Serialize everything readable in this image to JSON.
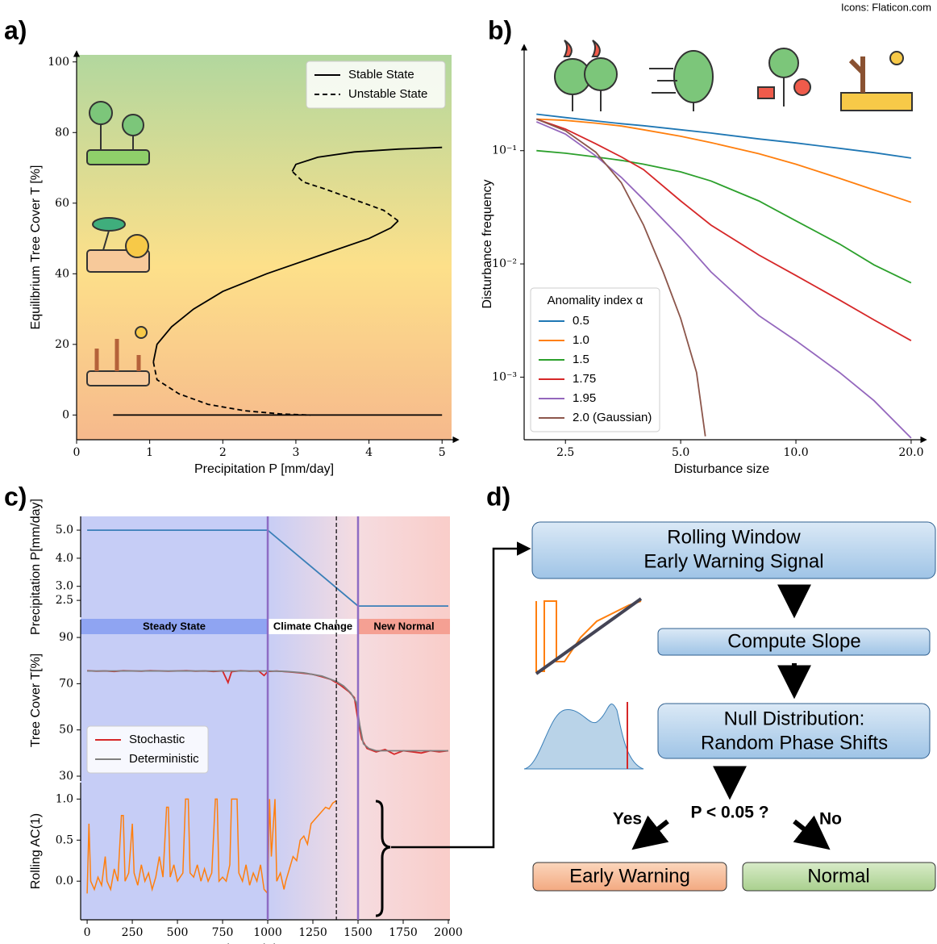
{
  "credit": "Icons: Flaticon.com",
  "chart_data": [
    {
      "type": "line",
      "panel": "a)",
      "xlabel": "Precipitation P [mm/day]",
      "ylabel": "Equilibrium Tree Cover T [%]",
      "xlim": [
        0,
        5.13
      ],
      "ylim": [
        -7,
        102
      ],
      "xticks": [
        0,
        1,
        2,
        3,
        4,
        5
      ],
      "yticks": [
        0,
        20,
        40,
        60,
        80,
        100
      ],
      "legend": "upper right",
      "series": [
        {
          "name": "Stable State",
          "color": "#000000",
          "linestyle": "solid",
          "x": [
            0.5,
            5,
            null,
            1.05,
            1.1,
            1.3,
            1.6,
            2.0,
            2.6,
            3.3,
            4.0,
            4.3,
            4.4,
            null,
            2.95,
            3.0,
            3.3,
            3.8,
            4.4,
            5
          ],
          "values": [
            0,
            0,
            null,
            15,
            20,
            25,
            30,
            35,
            40,
            45,
            50,
            53,
            55,
            null,
            69,
            71,
            73,
            74.5,
            75.3,
            75.8
          ]
        },
        {
          "name": "Unstable State",
          "color": "#000000",
          "linestyle": "dashed",
          "x": [
            4.4,
            4.2,
            3.8,
            3.4,
            3.1,
            2.95,
            null,
            1.05,
            1.1,
            1.4,
            1.8,
            2.3,
            2.8,
            3.2
          ],
          "values": [
            55,
            58,
            61,
            64,
            66,
            69,
            null,
            15,
            10,
            6,
            3,
            1.2,
            0.3,
            0
          ]
        }
      ]
    },
    {
      "type": "line",
      "panel": "b)",
      "xlabel": "Disturbance size",
      "ylabel": "Disturbance frequency",
      "xscale": "log",
      "yscale": "log",
      "xlim": [
        1.95,
        21
      ],
      "ylim": [
        0.00028,
        0.8
      ],
      "xticks": [
        2.5,
        {
          "value": 5,
          "label": "5.0"
        },
        {
          "value": 10,
          "label": "10.0"
        },
        {
          "value": 20,
          "label": "20.0"
        }
      ],
      "yticks": [
        {
          "value": 0.001,
          "label": "10⁻³"
        },
        {
          "value": 0.01,
          "label": "10⁻²"
        },
        {
          "value": 0.1,
          "label": "10⁻¹"
        }
      ],
      "legend": "lower left",
      "legend_title": "Anomality index α",
      "series": [
        {
          "name": "0.5",
          "color": "#1f77b4",
          "x": [
            2.1,
            2.5,
            3,
            3.5,
            4,
            5,
            6,
            8,
            10,
            13,
            16,
            20
          ],
          "values": [
            0.21,
            0.196,
            0.183,
            0.173,
            0.166,
            0.153,
            0.143,
            0.127,
            0.117,
            0.105,
            0.096,
            0.086
          ]
        },
        {
          "name": "1.0",
          "color": "#ff7f0e",
          "x": [
            2.1,
            2.5,
            3,
            3.5,
            4,
            5,
            6,
            8,
            10,
            13,
            16,
            20
          ],
          "values": [
            0.19,
            0.185,
            0.175,
            0.165,
            0.153,
            0.134,
            0.118,
            0.094,
            0.076,
            0.057,
            0.045,
            0.035
          ]
        },
        {
          "name": "1.5",
          "color": "#2ca02c",
          "x": [
            2.1,
            2.5,
            3,
            3.5,
            4,
            5,
            6,
            8,
            10,
            13,
            16,
            20
          ],
          "values": [
            0.1,
            0.095,
            0.088,
            0.082,
            0.076,
            0.065,
            0.054,
            0.036,
            0.024,
            0.015,
            0.0098,
            0.0068
          ]
        },
        {
          "name": "1.75",
          "color": "#d62728",
          "x": [
            2.1,
            2.5,
            3,
            3.5,
            4,
            5,
            6,
            8,
            10,
            13,
            16,
            20
          ],
          "values": [
            0.19,
            0.155,
            0.115,
            0.088,
            0.068,
            0.036,
            0.022,
            0.012,
            0.0079,
            0.0048,
            0.0032,
            0.0021
          ]
        },
        {
          "name": "1.95",
          "color": "#9467bd",
          "x": [
            2.1,
            2.5,
            3,
            3.5,
            4,
            5,
            6,
            8,
            10,
            13,
            16,
            20
          ],
          "values": [
            0.18,
            0.14,
            0.09,
            0.058,
            0.037,
            0.017,
            0.0085,
            0.0035,
            0.0021,
            0.0011,
            0.00062,
            0.00029
          ]
        },
        {
          "name": "2.0 (Gaussian)",
          "color": "#8c564b",
          "x": [
            2.1,
            2.5,
            3,
            3.5,
            4,
            4.5,
            5,
            5.5,
            5.8
          ],
          "values": [
            0.19,
            0.15,
            0.097,
            0.052,
            0.022,
            0.0085,
            0.0033,
            0.0011,
            0.0003
          ]
        }
      ]
    },
    {
      "type": "line",
      "panel": "c)",
      "ylabel": "Precipitation P[mm/day]",
      "xlim": [
        -36,
        2009
      ],
      "ylim": [
        1.9,
        5.49
      ],
      "yticks": [
        2.5,
        {
          "value": 3,
          "label": "3.0"
        },
        {
          "value": 4,
          "label": "4.0"
        },
        {
          "value": 5,
          "label": "5.0"
        }
      ],
      "phases": [
        "Steady State",
        "Climate Change",
        "New Normal"
      ],
      "series": [
        {
          "color": "#3a7fb8",
          "x": [
            0,
            1000,
            1500,
            2000
          ],
          "values": [
            5,
            5,
            2.3,
            2.3
          ]
        }
      ]
    },
    {
      "type": "line",
      "ylabel": "Tree Cover T[%]",
      "xlim": [
        -36,
        2009
      ],
      "ylim": [
        27.9,
        97.7
      ],
      "yticks": [
        30,
        50,
        70,
        90
      ],
      "legend": "lower left",
      "series": [
        {
          "name": "Stochastic",
          "color": "#d62728",
          "x": [
            0,
            50,
            100,
            150,
            200,
            250,
            300,
            350,
            400,
            450,
            500,
            550,
            600,
            650,
            700,
            750,
            780,
            800,
            850,
            900,
            950,
            980,
            1000,
            1050,
            1100,
            1150,
            1200,
            1250,
            1300,
            1350,
            1400,
            1450,
            1480,
            1500,
            1520,
            1550,
            1600,
            1650,
            1700,
            1750,
            1800,
            1850,
            1900,
            1950,
            2000
          ],
          "values": [
            75.6,
            75.4,
            75.5,
            75.3,
            75.6,
            75.5,
            75.4,
            75.6,
            75.5,
            75.4,
            75.5,
            75.6,
            75.4,
            75.5,
            75.3,
            75.5,
            70.5,
            75.2,
            75.6,
            75.4,
            75.5,
            73.5,
            75.3,
            75.5,
            75.2,
            74.9,
            74.5,
            74,
            73,
            71.8,
            69.5,
            66.5,
            64,
            54,
            46,
            42,
            40.5,
            41.5,
            39.5,
            41,
            40.5,
            40,
            41,
            40.5,
            41
          ]
        },
        {
          "name": "Deterministic",
          "color": "#808080",
          "x": [
            0,
            200,
            400,
            600,
            800,
            1000,
            1100,
            1200,
            1300,
            1380,
            1420,
            1460,
            1490,
            1510,
            1530,
            1560,
            1600,
            1700,
            1800,
            2000
          ],
          "values": [
            75.5,
            75.5,
            75.5,
            75.5,
            75.5,
            75.5,
            75.3,
            74.7,
            73.3,
            71,
            69,
            66,
            62,
            52,
            44,
            42,
            41,
            41,
            41,
            41
          ]
        }
      ]
    },
    {
      "type": "line",
      "ylabel": "Rolling AC(1)",
      "xlabel": "t in model years",
      "xlim": [
        -36,
        2009
      ],
      "ylim": [
        -0.47,
        1.2
      ],
      "xticks": [
        0,
        250,
        500,
        750,
        1000,
        1250,
        1500,
        1750,
        2000
      ],
      "yticks": [
        {
          "value": 0,
          "label": "0.0"
        },
        0.5,
        {
          "value": 1,
          "label": "1.0"
        }
      ],
      "vlines": [
        1000,
        1500
      ],
      "dashed_vline": 1380,
      "series": [
        {
          "color": "#ff7f0e",
          "x": [
            0,
            10,
            20,
            40,
            60,
            80,
            100,
            110,
            130,
            150,
            170,
            190,
            200,
            210,
            230,
            250,
            260,
            280,
            300,
            320,
            340,
            360,
            380,
            400,
            420,
            440,
            450,
            460,
            480,
            500,
            530,
            545,
            560,
            570,
            590,
            610,
            630,
            650,
            670,
            690,
            710,
            720,
            730,
            750,
            770,
            790,
            800,
            830,
            840,
            860,
            880,
            900,
            920,
            940,
            960,
            980,
            1000,
            1010,
            1020,
            1040,
            1050,
            1070,
            1090,
            1100,
            1120,
            1140,
            1160,
            1180,
            1200,
            1220,
            1240,
            1260,
            1280,
            1300,
            1320,
            1340,
            1360,
            1380
          ],
          "values": [
            -0.15,
            0.7,
            0.0,
            -0.1,
            0.05,
            -0.05,
            0.3,
            0.0,
            -0.1,
            0.15,
            0.0,
            0.8,
            0.8,
            0.0,
            0.1,
            0.7,
            0.1,
            -0.05,
            0.2,
            0.0,
            0.1,
            -0.1,
            0.05,
            0.3,
            0.05,
            0.9,
            0.9,
            0.05,
            0.2,
            0.0,
            0.1,
            1.0,
            1.0,
            0.1,
            0.05,
            0.2,
            0.0,
            0.15,
            0.0,
            0.1,
            1.0,
            1.0,
            0.0,
            0.05,
            0.0,
            0.2,
            1.0,
            1.0,
            0.1,
            0.0,
            0.2,
            -0.05,
            0.1,
            0.0,
            0.2,
            -0.1,
            -0.15,
            1.0,
            0.3,
            1.0,
            0.0,
            0.1,
            -0.1,
            0.0,
            0.15,
            0.3,
            0.25,
            0.5,
            0.55,
            0.45,
            0.7,
            0.75,
            0.8,
            0.85,
            0.9,
            0.88,
            0.95,
            0.98
          ]
        }
      ]
    }
  ],
  "diagram": {
    "panel": "d)",
    "nodes": [
      [
        "Rolling Window",
        "Early Warning Signal"
      ],
      [
        "Compute Slope"
      ],
      [
        "Null Distribution:",
        "Random Phase Shifts"
      ]
    ],
    "decision": "P < 0.05 ?",
    "yes": "Yes",
    "no": "No",
    "outcomes": [
      "Early Warning",
      "Normal"
    ]
  }
}
